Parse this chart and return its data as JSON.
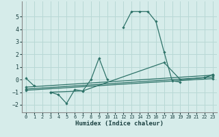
{
  "xlabel": "Humidex (Indice chaleur)",
  "bg_color": "#d6ecea",
  "grid_color": "#b8d8d5",
  "line_color": "#2d7268",
  "xlim": [
    -0.5,
    23.5
  ],
  "ylim": [
    -2.6,
    6.2
  ],
  "yticks": [
    -2,
    -1,
    0,
    1,
    2,
    3,
    4,
    5
  ],
  "xticks": [
    0,
    1,
    2,
    3,
    4,
    5,
    6,
    7,
    8,
    9,
    10,
    11,
    12,
    13,
    14,
    15,
    16,
    17,
    18,
    19,
    20,
    21,
    22,
    23
  ],
  "series": [
    {
      "x": [
        0,
        1,
        3,
        4,
        5,
        6,
        7,
        8,
        9,
        10,
        12,
        13,
        14,
        15,
        16,
        17,
        18,
        19,
        22,
        23
      ],
      "y": [
        0.1,
        -0.5,
        -1.0,
        -1.2,
        -1.9,
        -0.8,
        -0.9,
        0.0,
        1.7,
        0.0,
        4.15,
        5.4,
        5.4,
        5.4,
        4.6,
        2.2,
        -0.1,
        -0.2,
        0.15,
        0.4
      ],
      "breaks": []
    }
  ],
  "line2": {
    "x": [
      0,
      23
    ],
    "y": [
      -0.6,
      0.35
    ]
  },
  "line3": {
    "x": [
      0,
      23
    ],
    "y": [
      -0.75,
      0.2
    ]
  },
  "line4": {
    "x": [
      0,
      23
    ],
    "y": [
      -0.85,
      0.08
    ]
  },
  "line5": {
    "x": [
      3,
      7,
      17,
      19,
      22,
      23
    ],
    "y": [
      -1.0,
      -0.9,
      1.35,
      0.0,
      0.15,
      0.4
    ]
  }
}
